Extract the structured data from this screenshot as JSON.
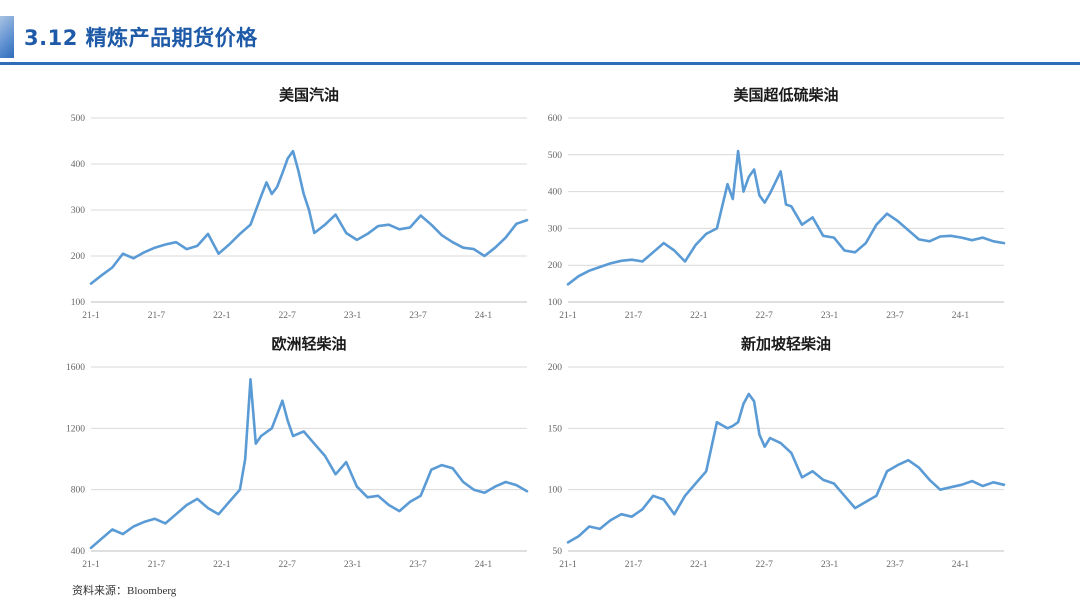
{
  "header": {
    "title": "3.12 精炼产品期货价格"
  },
  "source": "资料来源：Bloomberg",
  "colors": {
    "accent": "#2f6cb8",
    "series": "#5b9bd5",
    "grid": "#d9d9d9",
    "title": "#1e5aa8"
  },
  "chart_data": [
    {
      "type": "line",
      "title": "美国汽油",
      "x_ticks": [
        "21-1",
        "21-7",
        "22-1",
        "22-7",
        "23-1",
        "23-7",
        "24-1"
      ],
      "y_ticks": [
        "100",
        "200",
        "300",
        "400",
        "500"
      ],
      "ylim": [
        100,
        500
      ],
      "xlim": [
        0,
        41
      ],
      "grid": "horizontal",
      "series": [
        {
          "x": [
            0,
            1,
            2,
            3,
            4,
            5,
            6,
            7,
            8,
            9,
            10,
            11,
            12,
            13,
            14,
            15,
            16,
            16.5,
            17,
            17.5,
            18,
            18.5,
            19,
            19.5,
            20,
            20.5,
            21,
            22,
            23,
            24,
            25,
            26,
            27,
            28,
            29,
            30,
            31,
            32,
            33,
            34,
            35,
            36,
            37,
            38,
            39,
            40,
            41
          ],
          "values": [
            140,
            158,
            175,
            205,
            195,
            208,
            218,
            225,
            230,
            215,
            222,
            248,
            205,
            225,
            248,
            268,
            330,
            360,
            335,
            350,
            380,
            412,
            428,
            385,
            335,
            300,
            250,
            268,
            290,
            250,
            235,
            248,
            265,
            268,
            258,
            262,
            288,
            268,
            245,
            230,
            218,
            215,
            200,
            218,
            240,
            270,
            278
          ]
        }
      ]
    },
    {
      "type": "line",
      "title": "美国超低硫柴油",
      "x_ticks": [
        "21-1",
        "21-7",
        "22-1",
        "22-7",
        "23-1",
        "23-7",
        "24-1"
      ],
      "y_ticks": [
        "100",
        "200",
        "300",
        "400",
        "500",
        "600"
      ],
      "ylim": [
        100,
        600
      ],
      "xlim": [
        0,
        41
      ],
      "grid": "horizontal",
      "series": [
        {
          "x": [
            0,
            1,
            2,
            3,
            4,
            5,
            6,
            7,
            8,
            9,
            10,
            11,
            12,
            13,
            14,
            15,
            15.5,
            16,
            16.5,
            17,
            17.5,
            18,
            18.5,
            19,
            20,
            20.5,
            21,
            22,
            23,
            24,
            25,
            26,
            27,
            28,
            29,
            30,
            31,
            32,
            33,
            34,
            35,
            36,
            37,
            38,
            39,
            40,
            41
          ],
          "values": [
            148,
            170,
            185,
            195,
            205,
            212,
            215,
            210,
            235,
            260,
            240,
            210,
            255,
            285,
            300,
            420,
            380,
            510,
            400,
            440,
            460,
            390,
            370,
            395,
            455,
            365,
            360,
            310,
            330,
            280,
            275,
            240,
            235,
            260,
            310,
            340,
            320,
            295,
            270,
            265,
            278,
            280,
            275,
            268,
            275,
            265,
            260
          ]
        }
      ]
    },
    {
      "type": "line",
      "title": "欧洲轻柴油",
      "x_ticks": [
        "21-1",
        "21-7",
        "22-1",
        "22-7",
        "23-1",
        "23-7",
        "24-1"
      ],
      "y_ticks": [
        "400",
        "800",
        "1200",
        "1600"
      ],
      "ylim": [
        400,
        1600
      ],
      "xlim": [
        0,
        41
      ],
      "grid": "horizontal",
      "series": [
        {
          "x": [
            0,
            1,
            2,
            3,
            4,
            5,
            6,
            7,
            8,
            9,
            10,
            11,
            12,
            13,
            14,
            14.5,
            15,
            15.5,
            16,
            17,
            18,
            18.5,
            19,
            20,
            21,
            22,
            23,
            24,
            25,
            26,
            27,
            28,
            29,
            30,
            31,
            32,
            33,
            34,
            35,
            36,
            37,
            38,
            39,
            40,
            41
          ],
          "values": [
            420,
            480,
            540,
            510,
            560,
            590,
            610,
            580,
            640,
            700,
            740,
            680,
            640,
            720,
            800,
            1000,
            1520,
            1100,
            1150,
            1200,
            1380,
            1250,
            1150,
            1180,
            1100,
            1020,
            900,
            980,
            820,
            750,
            760,
            700,
            660,
            720,
            760,
            930,
            960,
            940,
            850,
            800,
            780,
            820,
            850,
            830,
            790
          ]
        }
      ]
    },
    {
      "type": "line",
      "title": "新加坡轻柴油",
      "x_ticks": [
        "21-1",
        "21-7",
        "22-1",
        "22-7",
        "23-1",
        "23-7",
        "24-1"
      ],
      "y_ticks": [
        "50",
        "100",
        "150",
        "200"
      ],
      "ylim": [
        50,
        200
      ],
      "xlim": [
        0,
        41
      ],
      "grid": "horizontal",
      "series": [
        {
          "x": [
            0,
            1,
            2,
            3,
            4,
            5,
            6,
            7,
            8,
            9,
            10,
            11,
            12,
            13,
            14,
            15,
            15.5,
            16,
            16.5,
            17,
            17.5,
            18,
            18.5,
            19,
            20,
            21,
            22,
            23,
            24,
            25,
            26,
            27,
            28,
            29,
            30,
            31,
            32,
            33,
            34,
            35,
            36,
            37,
            38,
            39,
            40,
            41
          ],
          "values": [
            57,
            62,
            70,
            68,
            75,
            80,
            78,
            84,
            95,
            92,
            80,
            95,
            105,
            115,
            155,
            150,
            152,
            155,
            170,
            178,
            172,
            145,
            135,
            142,
            138,
            130,
            110,
            115,
            108,
            105,
            95,
            85,
            90,
            95,
            115,
            120,
            124,
            118,
            108,
            100,
            102,
            104,
            107,
            103,
            106,
            104
          ]
        }
      ]
    }
  ]
}
